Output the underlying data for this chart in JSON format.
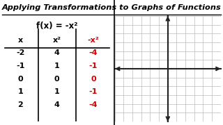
{
  "title": "Applying Transformations to Graphs of Functions",
  "func_label": "f(x) = -x²",
  "col_headers": [
    "x",
    "x²",
    "-x²"
  ],
  "rows": [
    [
      "-2",
      "4",
      "-4"
    ],
    [
      "-1",
      "1",
      "-1"
    ],
    [
      "0",
      "0",
      "0"
    ],
    [
      "1",
      "1",
      "-1"
    ],
    [
      "2",
      "4",
      "-4"
    ]
  ],
  "col3_color": "#cc0000",
  "bg_color": "#ffffff",
  "grid_color": "#bbbbbb",
  "axis_color": "#222222",
  "grid_divisions": 12
}
